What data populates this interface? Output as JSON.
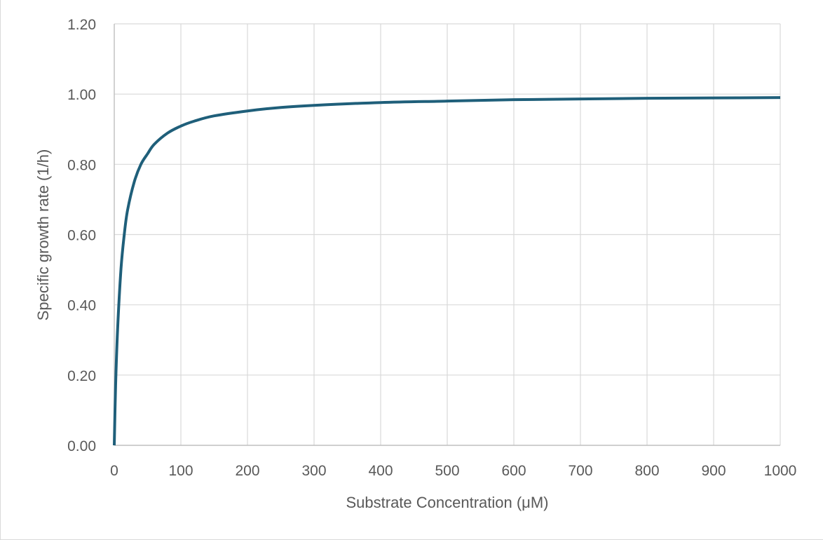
{
  "chart_data": {
    "type": "line",
    "title": "",
    "xlabel": "Substrate Concentration (μM)",
    "ylabel": "Specific growth rate (1/h)",
    "xlim": [
      0,
      1000
    ],
    "ylim": [
      0,
      1.2
    ],
    "x_ticks": [
      0,
      100,
      200,
      300,
      400,
      500,
      600,
      700,
      800,
      900,
      1000
    ],
    "y_ticks": [
      0,
      0.2,
      0.4,
      0.6,
      0.8,
      1.0,
      1.2
    ],
    "x_tick_labels": [
      "0",
      "100",
      "200",
      "300",
      "400",
      "500",
      "600",
      "700",
      "800",
      "900",
      "1000"
    ],
    "y_tick_labels": [
      "0.00",
      "0.20",
      "0.40",
      "0.60",
      "0.80",
      "1.00",
      "1.20"
    ],
    "grid": true,
    "legend": "none",
    "series": [
      {
        "color": "#1f5f7a",
        "x": [
          0,
          2,
          5,
          10,
          15,
          20,
          30,
          40,
          50,
          60,
          80,
          100,
          120,
          150,
          200,
          250,
          300,
          400,
          500,
          600,
          700,
          800,
          900,
          1000
        ],
        "y": [
          0,
          0.17,
          0.33,
          0.5,
          0.6,
          0.67,
          0.75,
          0.8,
          0.83,
          0.857,
          0.889,
          0.909,
          0.923,
          0.938,
          0.952,
          0.962,
          0.968,
          0.976,
          0.98,
          0.984,
          0.986,
          0.988,
          0.989,
          0.99
        ]
      }
    ]
  }
}
